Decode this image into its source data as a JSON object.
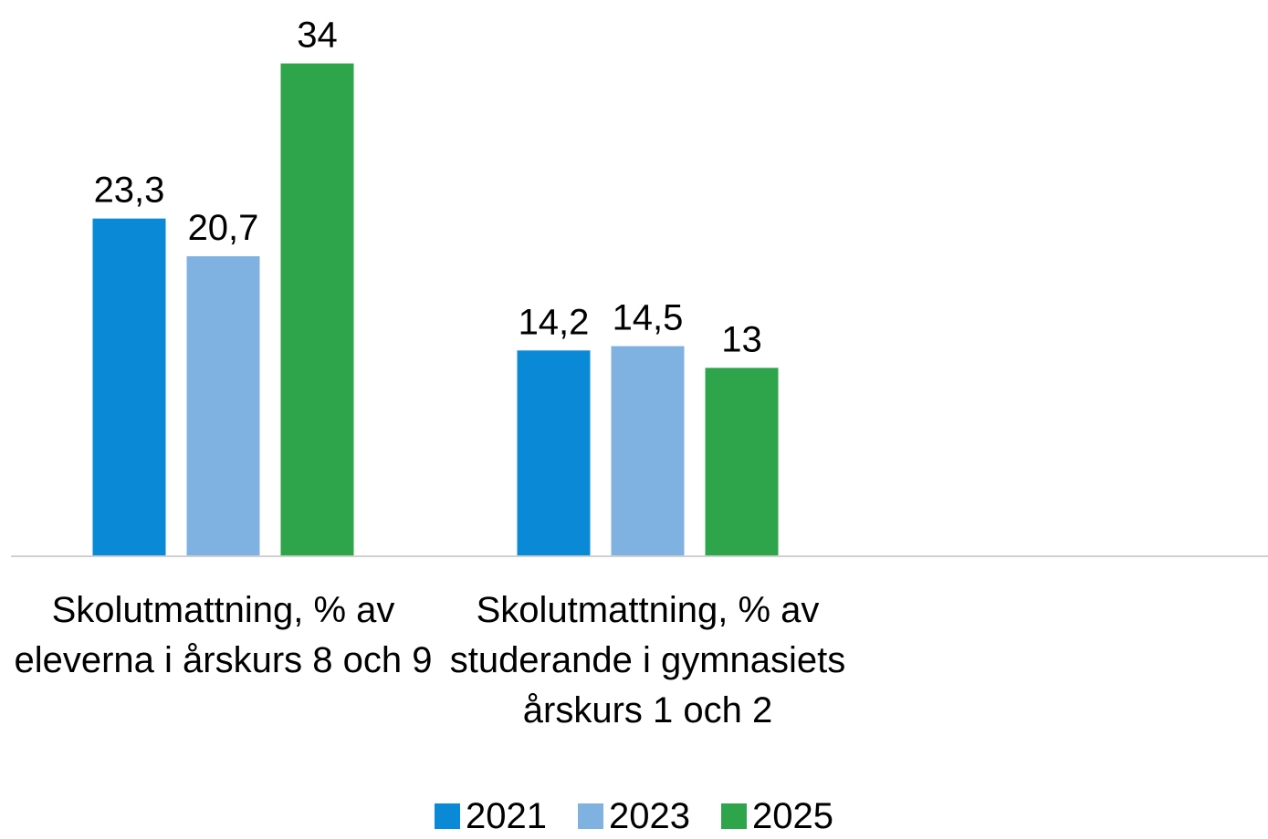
{
  "chart_data": {
    "type": "bar",
    "categories": [
      "Skolutmattning, % av eleverna i årskurs 8 och 9",
      "Skolutmattning, % av studerande i gymnasiets årskurs 1 och 2",
      null
    ],
    "series": [
      {
        "name": "2021",
        "color": "#0a8ad6",
        "values": [
          23.3,
          14.2,
          null
        ],
        "value_labels": [
          "23,3",
          "14,2",
          null
        ]
      },
      {
        "name": "2023",
        "color": "#7fb2e0",
        "values": [
          20.7,
          14.5,
          null
        ],
        "value_labels": [
          "20,7",
          "14,5",
          null
        ]
      },
      {
        "name": "2025",
        "color": "#2ea44b",
        "values": [
          34,
          13,
          null
        ],
        "value_labels": [
          "34",
          "13",
          null
        ]
      }
    ],
    "ylim": [
      0,
      38
    ],
    "legend": "bottom"
  }
}
